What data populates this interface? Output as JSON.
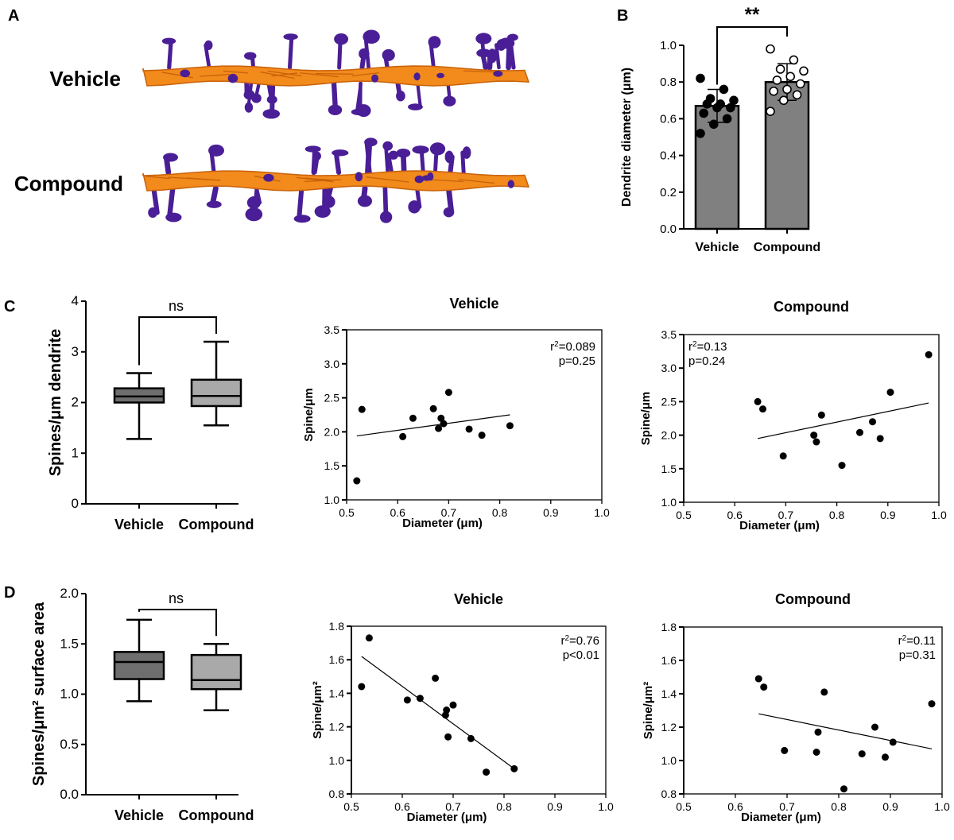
{
  "figure": {
    "panel_labels": {
      "a": "A",
      "b": "B",
      "c": "C",
      "d": "D"
    },
    "images": {
      "vehicle_label": "Vehicle",
      "compound_label": "Compound",
      "colors": {
        "dendrite": "#f28a1c",
        "dendrite_dark": "#c8620a",
        "spine": "#4a1e96"
      }
    }
  },
  "chart_data": [
    {
      "id": "b_dendrite_diameter",
      "type": "bar",
      "categories": [
        "Vehicle",
        "Compound"
      ],
      "values": [
        0.67,
        0.8
      ],
      "errors": [
        0.09,
        0.1
      ],
      "points": [
        [
          0.52,
          0.57,
          0.6,
          0.63,
          0.66,
          0.66,
          0.68,
          0.68,
          0.7,
          0.71,
          0.76,
          0.82
        ],
        [
          0.64,
          0.7,
          0.73,
          0.75,
          0.76,
          0.79,
          0.81,
          0.83,
          0.86,
          0.87,
          0.92,
          0.98
        ]
      ],
      "point_styles": [
        "filled",
        "open"
      ],
      "ylabel": "Dendrite diameter (μm)",
      "ylim": [
        0,
        1.0
      ],
      "yticks": [
        "0.0",
        "0.2",
        "0.4",
        "0.6",
        "0.8",
        "1.0"
      ],
      "significance": "**",
      "bar_color": "#808080"
    },
    {
      "id": "c_box_spines",
      "type": "box",
      "categories": [
        "Vehicle",
        "Compound"
      ],
      "boxes": [
        {
          "min": 1.28,
          "q1": 2.0,
          "median": 2.12,
          "q3": 2.28,
          "max": 2.58,
          "color": "#6e6e6e"
        },
        {
          "min": 1.55,
          "q1": 1.93,
          "median": 2.13,
          "q3": 2.45,
          "max": 3.2,
          "color": "#a9a9a9"
        }
      ],
      "ylabel": "Spines/μm dendrite",
      "ylim": [
        0,
        4
      ],
      "yticks": [
        "0",
        "1",
        "2",
        "3",
        "4"
      ],
      "significance": "ns"
    },
    {
      "id": "c_scatter_vehicle",
      "type": "scatter",
      "title": "Vehicle",
      "xlabel": "Diameter (μm)",
      "ylabel": "Spine/μm",
      "x": [
        0.52,
        0.53,
        0.61,
        0.63,
        0.67,
        0.68,
        0.685,
        0.69,
        0.7,
        0.74,
        0.765,
        0.82
      ],
      "y": [
        1.28,
        2.33,
        1.93,
        2.2,
        2.34,
        2.05,
        2.2,
        2.12,
        2.58,
        2.04,
        1.95,
        2.09
      ],
      "fit": {
        "x": [
          0.52,
          0.82
        ],
        "y": [
          1.94,
          2.25
        ]
      },
      "xlim": [
        0.5,
        1.0
      ],
      "ylim": [
        1.0,
        3.5
      ],
      "xticks": [
        "0.5",
        "0.6",
        "0.7",
        "0.8",
        "0.9",
        "1.0"
      ],
      "yticks": [
        "1.0",
        "1.5",
        "2.0",
        "2.5",
        "3.0",
        "3.5"
      ],
      "stats": {
        "r2": "=0.089",
        "p": "p=0.25"
      },
      "stats_align": "right"
    },
    {
      "id": "c_scatter_compound",
      "type": "scatter",
      "title": "Compound",
      "xlabel": "Diameter (μm)",
      "ylabel": "Spine/μm",
      "x": [
        0.645,
        0.655,
        0.695,
        0.755,
        0.76,
        0.77,
        0.81,
        0.845,
        0.87,
        0.885,
        0.905,
        0.98
      ],
      "y": [
        2.5,
        2.39,
        1.69,
        2.0,
        1.9,
        2.3,
        1.55,
        2.04,
        2.2,
        1.95,
        2.64,
        3.2
      ],
      "fit": {
        "x": [
          0.645,
          0.98
        ],
        "y": [
          1.95,
          2.48
        ]
      },
      "xlim": [
        0.5,
        1.0
      ],
      "ylim": [
        1.0,
        3.5
      ],
      "xticks": [
        "0.5",
        "0.6",
        "0.7",
        "0.8",
        "0.9",
        "1.0"
      ],
      "yticks": [
        "1.0",
        "1.5",
        "2.0",
        "2.5",
        "3.0",
        "3.5"
      ],
      "stats": {
        "r2": "=0.13",
        "p": "p=0.24"
      },
      "stats_align": "left"
    },
    {
      "id": "d_box_spines_area",
      "type": "box",
      "categories": [
        "Vehicle",
        "Compound"
      ],
      "boxes": [
        {
          "min": 0.93,
          "q1": 1.15,
          "median": 1.32,
          "q3": 1.42,
          "max": 1.74,
          "color": "#6e6e6e"
        },
        {
          "min": 0.84,
          "q1": 1.05,
          "median": 1.14,
          "q3": 1.39,
          "max": 1.5,
          "color": "#a9a9a9"
        }
      ],
      "ylabel": "Spines/μm² surface area",
      "ylim": [
        0,
        2.0
      ],
      "yticks": [
        "0.0",
        "0.5",
        "1.0",
        "1.5",
        "2.0"
      ],
      "significance": "ns"
    },
    {
      "id": "d_scatter_vehicle",
      "type": "scatter",
      "title": "Vehicle",
      "xlabel": "Diameter (μm)",
      "ylabel": "Spine/μm²",
      "x": [
        0.52,
        0.535,
        0.61,
        0.635,
        0.665,
        0.685,
        0.687,
        0.69,
        0.7,
        0.735,
        0.765,
        0.82
      ],
      "y": [
        1.44,
        1.73,
        1.36,
        1.37,
        1.49,
        1.27,
        1.3,
        1.14,
        1.33,
        1.13,
        0.93,
        0.95
      ],
      "fit": {
        "x": [
          0.52,
          0.82
        ],
        "y": [
          1.62,
          0.95
        ]
      },
      "xlim": [
        0.5,
        1.0
      ],
      "ylim": [
        0.8,
        1.8
      ],
      "xticks": [
        "0.5",
        "0.6",
        "0.7",
        "0.8",
        "0.9",
        "1.0"
      ],
      "yticks": [
        "0.8",
        "1.0",
        "1.2",
        "1.4",
        "1.6",
        "1.8"
      ],
      "stats": {
        "r2": "=0.76",
        "p": "p<0.01"
      },
      "stats_align": "right"
    },
    {
      "id": "d_scatter_compound",
      "type": "scatter",
      "title": "Compound",
      "xlabel": "Diameter (μm)",
      "ylabel": "Spine/μm²",
      "x": [
        0.645,
        0.655,
        0.695,
        0.76,
        0.757,
        0.772,
        0.81,
        0.845,
        0.87,
        0.89,
        0.905,
        0.98
      ],
      "y": [
        1.49,
        1.44,
        1.06,
        1.17,
        1.05,
        1.41,
        0.83,
        1.04,
        1.2,
        1.02,
        1.11,
        1.34
      ],
      "fit": {
        "x": [
          0.645,
          0.98
        ],
        "y": [
          1.28,
          1.07
        ]
      },
      "xlim": [
        0.5,
        1.0
      ],
      "ylim": [
        0.8,
        1.8
      ],
      "xticks": [
        "0.5",
        "0.6",
        "0.7",
        "0.8",
        "0.9",
        "1.0"
      ],
      "yticks": [
        "0.8",
        "1.0",
        "1.2",
        "1.4",
        "1.6",
        "1.8"
      ],
      "stats": {
        "r2": "=0.11",
        "p": "p=0.31"
      },
      "stats_align": "right"
    }
  ]
}
